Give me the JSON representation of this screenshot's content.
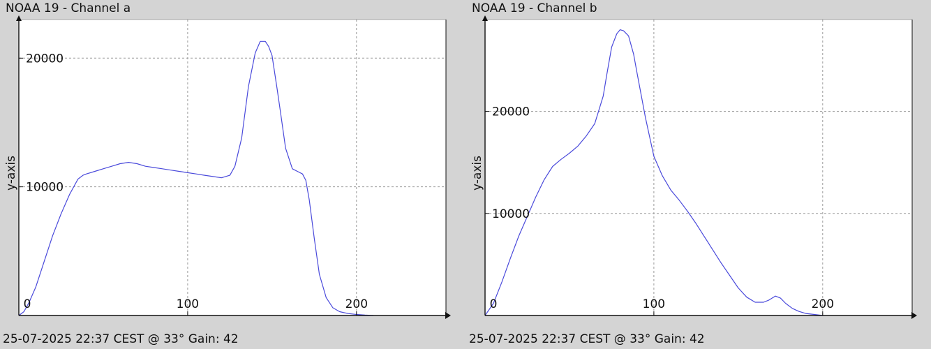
{
  "chart_data": [
    {
      "type": "line",
      "title": "NOAA 19 - Channel a",
      "footer": "25-07-2025 22:37 CEST @ 33° Gain: 42",
      "ylabel": "y-axis",
      "xlim": [
        0,
        253
      ],
      "ylim": [
        0,
        23000
      ],
      "xticks": [
        0,
        100,
        200
      ],
      "yticks": [
        10000,
        20000
      ],
      "grid": true,
      "color": "#4a4adb",
      "series": [
        {
          "x": [
            0,
            3,
            6,
            10,
            15,
            20,
            25,
            30,
            35,
            38,
            40,
            45,
            50,
            55,
            60,
            65,
            70,
            75,
            80,
            85,
            90,
            95,
            100,
            105,
            110,
            115,
            120,
            125,
            128,
            132,
            136,
            140,
            143,
            146,
            148,
            150,
            153,
            155,
            158,
            162,
            165,
            168,
            170,
            172,
            175,
            178,
            182,
            186,
            190,
            195,
            200,
            205,
            210
          ],
          "y": [
            0,
            300,
            1000,
            2200,
            4200,
            6200,
            7900,
            9400,
            10600,
            10900,
            11000,
            11200,
            11400,
            11600,
            11800,
            11900,
            11800,
            11600,
            11500,
            11400,
            11300,
            11200,
            11100,
            11000,
            10900,
            10800,
            10700,
            10900,
            11600,
            13800,
            17800,
            20400,
            21300,
            21300,
            20900,
            20200,
            17600,
            15800,
            13000,
            11400,
            11200,
            11000,
            10500,
            9000,
            6000,
            3200,
            1400,
            600,
            300,
            150,
            80,
            30,
            0
          ]
        }
      ]
    },
    {
      "type": "line",
      "title": "NOAA 19 - Channel b",
      "footer": "25-07-2025 22:37 CEST @ 33° Gain: 42",
      "ylabel": "y-axis",
      "xlim": [
        0,
        253
      ],
      "ylim": [
        0,
        29000
      ],
      "xticks": [
        0,
        100,
        200
      ],
      "yticks": [
        10000,
        20000
      ],
      "grid": true,
      "color": "#4a4adb",
      "series": [
        {
          "x": [
            0,
            5,
            10,
            15,
            20,
            25,
            30,
            35,
            40,
            45,
            50,
            55,
            60,
            65,
            70,
            72,
            75,
            78,
            80,
            82,
            85,
            88,
            90,
            95,
            100,
            105,
            110,
            115,
            120,
            125,
            130,
            135,
            140,
            145,
            150,
            155,
            160,
            165,
            168,
            170,
            172,
            175,
            178,
            182,
            186,
            190,
            195,
            200
          ],
          "y": [
            0,
            1200,
            3300,
            5600,
            7800,
            9700,
            11600,
            13300,
            14600,
            15300,
            15900,
            16600,
            17600,
            18800,
            21500,
            23500,
            26300,
            27600,
            28000,
            27900,
            27400,
            25600,
            23800,
            19400,
            15600,
            13700,
            12300,
            11300,
            10200,
            9000,
            7700,
            6400,
            5100,
            3900,
            2700,
            1800,
            1300,
            1300,
            1500,
            1700,
            1900,
            1700,
            1200,
            700,
            400,
            200,
            100,
            0
          ]
        }
      ]
    }
  ]
}
